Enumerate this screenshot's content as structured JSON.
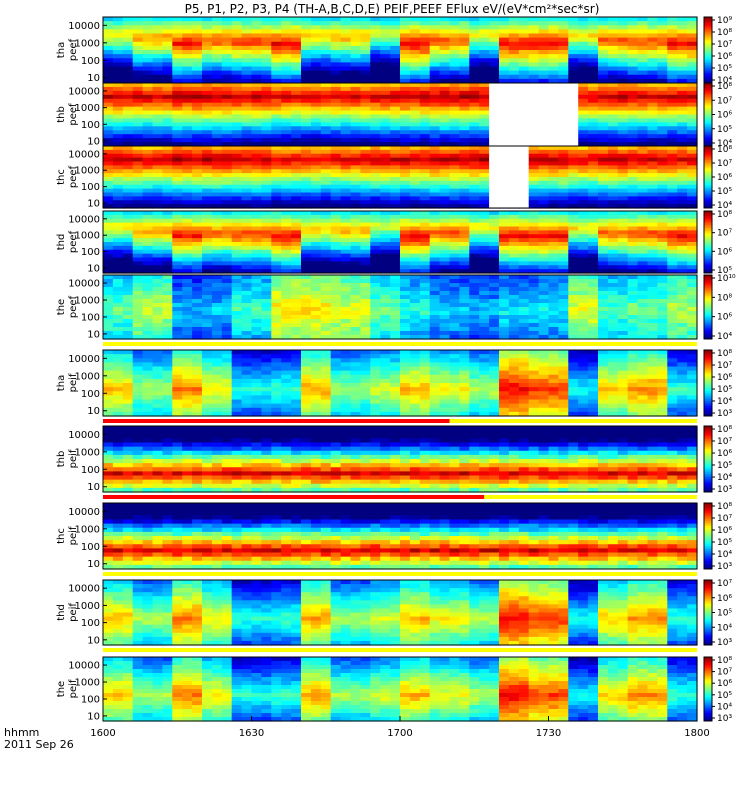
{
  "chart_data": {
    "type": "heatmap",
    "title": "P5, P1, P2, P3, P4 (TH-A,B,C,D,E) PEIF,PEEF EFlux eV/(eV*cm²*sec*sr)",
    "x": {
      "ticks": [
        "1600",
        "1630",
        "1700",
        "1730",
        "1800"
      ],
      "range_minutes": [
        960,
        1080
      ]
    },
    "footer": {
      "xlabel": "hhmm",
      "date": "2011 Sep 26"
    },
    "y_ticks": [
      "10",
      "100",
      "1000",
      "10000"
    ],
    "y_log_range": [
      5,
      30000
    ],
    "panels": [
      {
        "probe": "tha",
        "species": "peef",
        "colorbar_ticks": [
          "10⁴",
          "10⁵",
          "10⁶",
          "10⁷",
          "10⁸",
          "10⁹"
        ],
        "pattern": "electron_hot",
        "gap": null,
        "status_bar": null
      },
      {
        "probe": "thb",
        "species": "peef",
        "colorbar_ticks": [
          "10⁴",
          "10⁵",
          "10⁶",
          "10⁷",
          "10⁸"
        ],
        "pattern": "electron_band",
        "gap": [
          1718,
          1736
        ],
        "status_bar": null
      },
      {
        "probe": "thc",
        "species": "peef",
        "colorbar_ticks": [
          "10⁴",
          "10⁵",
          "10⁶",
          "10⁷",
          "10⁸"
        ],
        "pattern": "electron_band",
        "gap": [
          1718,
          1726
        ],
        "status_bar": null
      },
      {
        "probe": "thd",
        "species": "peef",
        "colorbar_ticks": [
          "10⁵",
          "10⁶",
          "10⁷",
          "10⁸"
        ],
        "pattern": "electron_hot",
        "gap": null,
        "status_bar": null
      },
      {
        "probe": "the",
        "species": "peef",
        "colorbar_ticks": [
          "10⁴",
          "10⁶",
          "10⁸",
          "10¹⁰"
        ],
        "pattern": "electron_cold",
        "gap": null,
        "status_bar": {
          "red_to": null
        }
      },
      {
        "probe": "tha",
        "species": "peif",
        "colorbar_ticks": [
          "10³",
          "10⁴",
          "10⁵",
          "10⁶",
          "10⁷",
          "10⁸"
        ],
        "pattern": "ion",
        "gap": null,
        "status_bar": {
          "red_to": 1710
        }
      },
      {
        "probe": "thb",
        "species": "peif",
        "colorbar_ticks": [
          "10³",
          "10⁴",
          "10⁵",
          "10⁶",
          "10⁷",
          "10⁸"
        ],
        "pattern": "ion_band",
        "gap": null,
        "status_bar": {
          "red_to": 1717
        }
      },
      {
        "probe": "thc",
        "species": "peif",
        "colorbar_ticks": [
          "10³",
          "10⁴",
          "10⁵",
          "10⁶",
          "10⁷",
          "10⁸"
        ],
        "pattern": "ion_band",
        "gap": null,
        "status_bar": {
          "red_to": null
        }
      },
      {
        "probe": "thd",
        "species": "peif",
        "colorbar_ticks": [
          "10³",
          "10⁴",
          "10⁵",
          "10⁶",
          "10⁷"
        ],
        "pattern": "ion",
        "gap": null,
        "status_bar": {
          "red_to": null
        }
      },
      {
        "probe": "the",
        "species": "peif",
        "colorbar_ticks": [
          "10³",
          "10⁴",
          "10⁵",
          "10⁶",
          "10⁷",
          "10⁸"
        ],
        "pattern": "ion",
        "gap": null,
        "status_bar": null
      }
    ]
  }
}
